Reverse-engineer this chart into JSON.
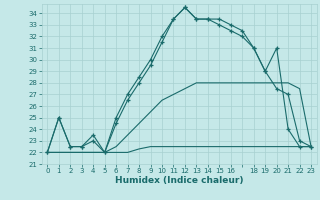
{
  "bg_color": "#c5e8e8",
  "grid_color": "#a8d0d0",
  "line_color": "#1a6b6b",
  "xlabel": "Humidex (Indice chaleur)",
  "xlim": [
    -0.5,
    23.5
  ],
  "ylim": [
    21.0,
    34.8
  ],
  "yticks": [
    21,
    22,
    23,
    24,
    25,
    26,
    27,
    28,
    29,
    30,
    31,
    32,
    33,
    34
  ],
  "xtick_labels": [
    "0",
    "1",
    "2",
    "3",
    "4",
    "5",
    "6",
    "7",
    "8",
    "9",
    "10",
    "11",
    "12",
    "13",
    "14",
    "15",
    "16",
    "",
    "18",
    "19",
    "20",
    "21",
    "22",
    "23"
  ],
  "hours": [
    0,
    1,
    2,
    3,
    4,
    5,
    6,
    7,
    8,
    9,
    10,
    11,
    12,
    13,
    14,
    15,
    16,
    17,
    18,
    19,
    20,
    21,
    22,
    23
  ],
  "curve_main": [
    22.0,
    25.0,
    22.5,
    22.5,
    23.5,
    22.0,
    24.5,
    26.5,
    28.0,
    29.5,
    31.5,
    33.5,
    34.5,
    33.5,
    33.5,
    33.0,
    32.5,
    32.0,
    31.0,
    29.0,
    27.5,
    27.0,
    23.0,
    22.5
  ],
  "curve_second": [
    22.0,
    25.0,
    22.5,
    22.5,
    23.0,
    22.0,
    25.0,
    27.0,
    28.5,
    30.0,
    32.0,
    33.5,
    34.5,
    33.5,
    33.5,
    33.5,
    33.0,
    32.5,
    31.0,
    29.0,
    31.0,
    24.0,
    22.5,
    22.5
  ],
  "curve_flat": [
    22.0,
    22.0,
    22.0,
    22.0,
    22.0,
    22.0,
    22.0,
    22.0,
    22.3,
    22.5,
    22.5,
    22.5,
    22.5,
    22.5,
    22.5,
    22.5,
    22.5,
    22.5,
    22.5,
    22.5,
    22.5,
    22.5,
    22.5,
    22.5
  ],
  "curve_trend": [
    22.0,
    22.0,
    22.0,
    22.0,
    22.0,
    22.0,
    22.5,
    23.5,
    24.5,
    25.5,
    26.5,
    27.0,
    27.5,
    28.0,
    28.0,
    28.0,
    28.0,
    28.0,
    28.0,
    28.0,
    28.0,
    28.0,
    27.5,
    22.5
  ]
}
